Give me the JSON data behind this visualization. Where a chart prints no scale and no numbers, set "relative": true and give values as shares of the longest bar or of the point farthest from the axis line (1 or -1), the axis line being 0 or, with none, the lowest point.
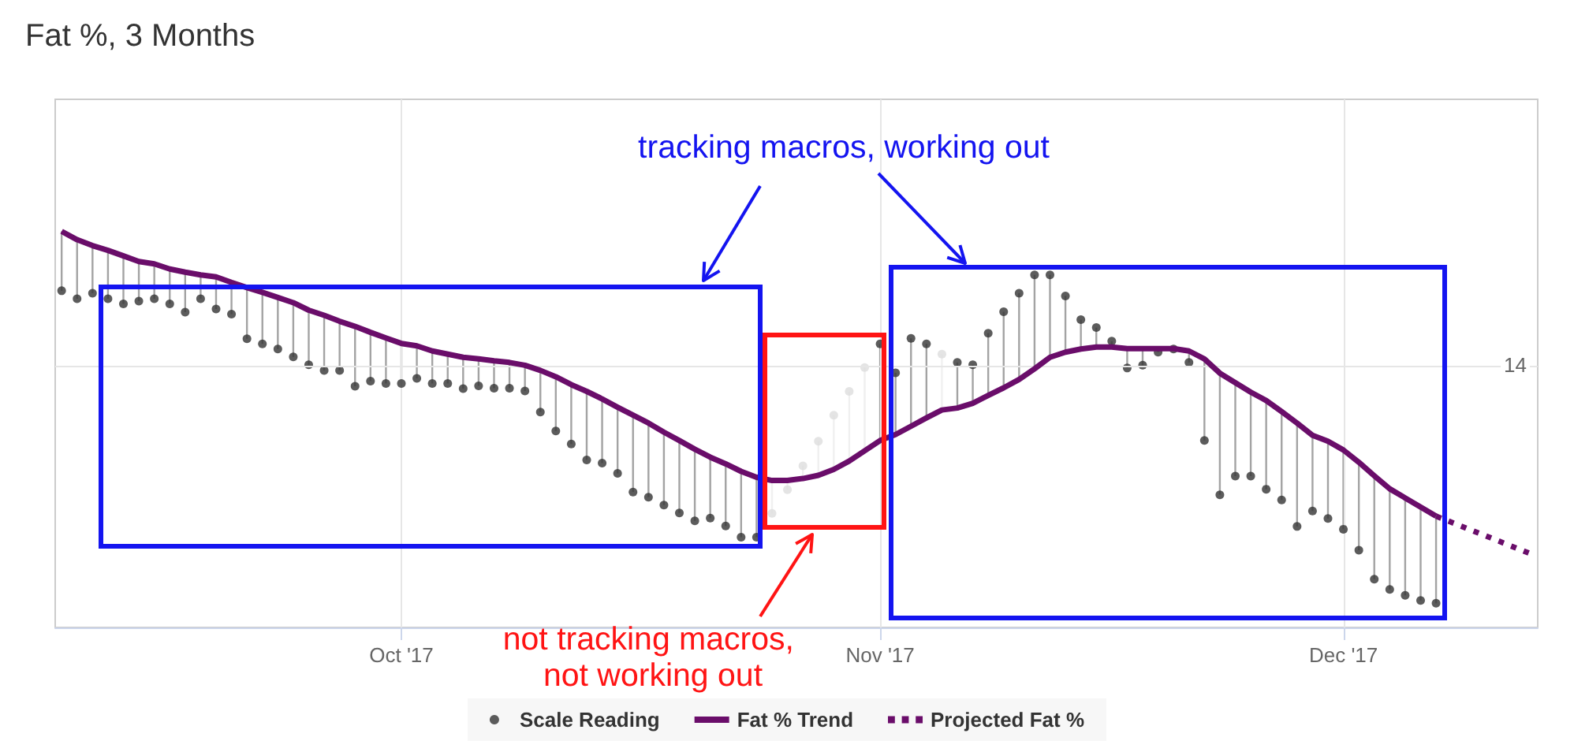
{
  "chart_data": {
    "type": "line",
    "title": "Fat %, 3 Months",
    "relative": true,
    "grid": "x",
    "legend": "bottom",
    "xlim": [
      "2017-09-08T14:00",
      "2017-12-13T14:00"
    ],
    "xticks": [
      {
        "value": "2017-10-01",
        "label": "Oct '17"
      },
      {
        "value": "2017-11-01",
        "label": "Nov '17"
      },
      {
        "value": "2017-12-01",
        "label": "Dec '17"
      }
    ],
    "x": [
      "2017-09-09",
      "2017-09-10",
      "2017-09-11",
      "2017-09-12",
      "2017-09-13",
      "2017-09-14",
      "2017-09-15",
      "2017-09-16",
      "2017-09-17",
      "2017-09-18",
      "2017-09-19",
      "2017-09-20",
      "2017-09-21",
      "2017-09-22",
      "2017-09-23",
      "2017-09-24",
      "2017-09-25",
      "2017-09-26",
      "2017-09-27",
      "2017-09-28",
      "2017-09-29",
      "2017-09-30",
      "2017-10-01",
      "2017-10-02",
      "2017-10-03",
      "2017-10-04",
      "2017-10-05",
      "2017-10-06",
      "2017-10-07",
      "2017-10-08",
      "2017-10-09",
      "2017-10-10",
      "2017-10-11",
      "2017-10-12",
      "2017-10-13",
      "2017-10-14",
      "2017-10-15",
      "2017-10-16",
      "2017-10-17",
      "2017-10-18",
      "2017-10-19",
      "2017-10-20",
      "2017-10-21",
      "2017-10-22",
      "2017-10-23",
      "2017-10-24",
      "2017-10-25",
      "2017-10-26",
      "2017-10-27",
      "2017-10-28",
      "2017-10-29",
      "2017-10-30",
      "2017-10-31",
      "2017-11-01",
      "2017-11-02",
      "2017-11-03",
      "2017-11-04",
      "2017-11-05",
      "2017-11-06",
      "2017-11-07",
      "2017-11-08",
      "2017-11-09",
      "2017-11-10",
      "2017-11-11",
      "2017-11-12",
      "2017-11-13",
      "2017-11-14",
      "2017-11-15",
      "2017-11-16",
      "2017-11-17",
      "2017-11-18",
      "2017-11-19",
      "2017-11-20",
      "2017-11-21",
      "2017-11-22",
      "2017-11-23",
      "2017-11-24",
      "2017-11-25",
      "2017-11-26",
      "2017-11-27",
      "2017-11-28",
      "2017-11-29",
      "2017-11-30",
      "2017-12-01",
      "2017-12-02",
      "2017-12-03",
      "2017-12-04",
      "2017-12-05",
      "2017-12-06",
      "2017-12-07"
    ],
    "series": [
      {
        "name": "Scale Reading",
        "type": "scatter",
        "marker": "circle",
        "color": "#333333",
        "values": [
          0.85,
          0.83,
          0.844,
          0.83,
          0.817,
          0.824,
          0.83,
          0.817,
          0.796,
          0.83,
          0.804,
          0.791,
          0.729,
          0.716,
          0.703,
          0.683,
          0.663,
          0.649,
          0.649,
          0.609,
          0.622,
          0.616,
          0.616,
          0.629,
          0.616,
          0.616,
          0.603,
          0.61,
          0.604,
          0.604,
          0.597,
          0.544,
          0.496,
          0.463,
          0.423,
          0.415,
          0.389,
          0.342,
          0.329,
          0.309,
          0.289,
          0.269,
          0.276,
          0.256,
          0.228,
          0.228,
          null,
          null,
          null,
          null,
          null,
          null,
          null,
          0.716,
          0.643,
          0.73,
          0.716,
          null,
          0.669,
          0.663,
          0.743,
          0.797,
          0.844,
          0.89,
          0.89,
          0.837,
          0.777,
          0.757,
          0.723,
          0.655,
          0.662,
          0.695,
          0.703,
          0.669,
          0.472,
          0.335,
          0.382,
          0.382,
          0.349,
          0.322,
          0.255,
          0.294,
          0.275,
          0.248,
          0.195,
          0.122,
          0.096,
          0.081,
          0.068,
          0.061
        ]
      },
      {
        "type": "scatter",
        "marker": "circle",
        "color": "#dddddd",
        "x": [
          "2017-10-25",
          "2017-10-26",
          "2017-10-27",
          "2017-10-28",
          "2017-10-29",
          "2017-10-30",
          "2017-10-31",
          "2017-11-05"
        ],
        "values": [
          0.288,
          0.348,
          0.408,
          0.47,
          0.536,
          0.596,
          0.656,
          0.69
        ]
      },
      {
        "name": "Fat % Trend",
        "line_style": "solid",
        "color": "#6a0d6a",
        "values": [
          1,
          0.979,
          0.964,
          0.952,
          0.938,
          0.924,
          0.918,
          0.905,
          0.897,
          0.89,
          0.885,
          0.871,
          0.858,
          0.846,
          0.833,
          0.82,
          0.801,
          0.788,
          0.773,
          0.76,
          0.745,
          0.731,
          0.717,
          0.711,
          0.698,
          0.69,
          0.682,
          0.678,
          0.673,
          0.669,
          0.662,
          0.649,
          0.633,
          0.613,
          0.596,
          0.577,
          0.556,
          0.536,
          0.516,
          0.493,
          0.472,
          0.45,
          0.43,
          0.413,
          0.394,
          0.379,
          0.371,
          0.371,
          0.376,
          0.384,
          0.399,
          0.42,
          0.446,
          0.472,
          0.487,
          0.508,
          0.529,
          0.549,
          0.554,
          0.566,
          0.586,
          0.605,
          0.626,
          0.653,
          0.682,
          0.695,
          0.703,
          0.708,
          0.708,
          0.704,
          0.704,
          0.704,
          0.704,
          0.698,
          0.678,
          0.642,
          0.618,
          0.594,
          0.573,
          0.545,
          0.516,
          0.485,
          0.47,
          0.448,
          0.417,
          0.383,
          0.35,
          0.327,
          0.304,
          0.281
        ]
      },
      {
        "name": "Projected Fat %",
        "line_style": "dotted",
        "color": "#6a0d6a",
        "x": [
          "2017-12-07",
          "2017-12-13"
        ],
        "values": [
          0.281,
          0.188
        ]
      }
    ],
    "ref_lines": [
      {
        "axis": "y",
        "value": 0.663,
        "color": "#e6e6e6"
      }
    ],
    "annotations": [
      "tracking macros, working out",
      "not tracking macros, not working out",
      {
        "text": "14",
        "y": 0.663
      }
    ]
  }
}
